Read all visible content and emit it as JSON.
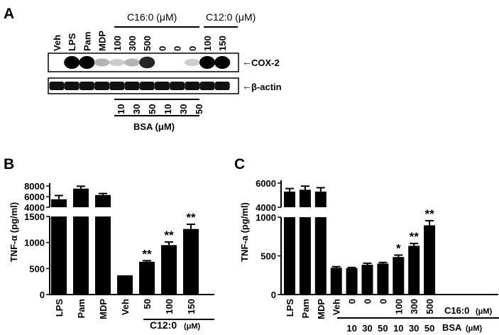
{
  "panel_labels": [
    "A",
    "B",
    "C"
  ],
  "blot": {
    "lane_labels": [
      "Veh",
      "LPS",
      "Pam",
      "MDP",
      "100",
      "300",
      "500",
      "0",
      "0",
      "0",
      "100",
      "150"
    ],
    "c16_header": "C16:0 (μM)",
    "c12_header": "C12:0 (μM)",
    "band_labels": [
      "COX-2",
      "β-actin"
    ],
    "bsa_values": [
      "10",
      "30",
      "50",
      "10",
      "30",
      "50"
    ],
    "bsa_label": "BSA (μM)",
    "cox2_intensity": [
      0.0,
      1.0,
      1.0,
      0.3,
      0.2,
      0.3,
      0.85,
      0.0,
      0.0,
      0.2,
      1.0,
      1.0
    ],
    "actin_intensity": [
      1,
      1,
      1,
      1,
      1,
      1,
      1,
      1,
      1,
      1,
      1,
      1
    ]
  },
  "chart_data": [
    {
      "type": "bar",
      "panel": "B",
      "ylabel": "TNF-α (pg/ml)",
      "broken_axis": true,
      "upper_ylim": [
        4000,
        8000
      ],
      "upper_ticks": [
        "4000",
        "6000",
        "8000"
      ],
      "lower_ylim": [
        0,
        1500
      ],
      "lower_ticks": [
        "0",
        "500",
        "1000",
        "1500"
      ],
      "categories": [
        "LPS",
        "Pam",
        "MDP",
        "Veh",
        "50",
        "100",
        "150"
      ],
      "values": [
        5500,
        7500,
        6300,
        370,
        630,
        950,
        1260
      ],
      "errors": [
        700,
        450,
        280,
        0,
        20,
        60,
        90
      ],
      "significance": [
        "",
        "",
        "",
        "",
        "**",
        "**",
        "**"
      ],
      "group_label": "C12:0",
      "group_unit": "(μM)"
    },
    {
      "type": "bar",
      "panel": "C",
      "ylabel": "TNF-a (pg/ml)",
      "broken_axis": true,
      "upper_ylim": [
        4000,
        6000
      ],
      "upper_ticks": [
        "4000",
        "6000"
      ],
      "lower_ylim": [
        0,
        1000
      ],
      "lower_ticks": [
        "0",
        "500",
        "1000"
      ],
      "categories": [
        "LPS",
        "Pam",
        "MDP",
        "Veh",
        "0",
        "0",
        "0",
        "100",
        "300",
        "500"
      ],
      "bsa_values": [
        "10",
        "30",
        "50",
        "10",
        "30",
        "50"
      ],
      "values": [
        5300,
        5450,
        5300,
        345,
        340,
        385,
        400,
        485,
        630,
        895
      ],
      "errors": [
        250,
        300,
        320,
        15,
        10,
        20,
        15,
        25,
        30,
        60
      ],
      "significance": [
        "",
        "",
        "",
        "",
        "",
        "",
        "",
        "*",
        "**",
        "**"
      ],
      "row_label_1": "C16:0",
      "row_unit_1": "(μM)",
      "row_label_2": "BSA",
      "row_unit_2": "(μM)"
    }
  ]
}
